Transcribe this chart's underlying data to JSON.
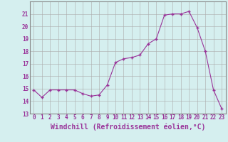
{
  "x": [
    0,
    1,
    2,
    3,
    4,
    5,
    6,
    7,
    8,
    9,
    10,
    11,
    12,
    13,
    14,
    15,
    16,
    17,
    18,
    19,
    20,
    21,
    22,
    23
  ],
  "y": [
    14.9,
    14.3,
    14.9,
    14.9,
    14.9,
    14.9,
    14.6,
    14.4,
    14.5,
    15.3,
    17.1,
    17.4,
    17.5,
    17.7,
    18.6,
    19.0,
    20.9,
    21.0,
    21.0,
    21.2,
    19.9,
    18.0,
    14.9,
    13.4
  ],
  "line_color": "#993399",
  "marker_color": "#993399",
  "bg_color": "#d5efef",
  "grid_color": "#aaaaaa",
  "xlabel": "Windchill (Refroidissement éolien,°C)",
  "ylim": [
    13,
    22
  ],
  "xlim": [
    -0.5,
    23.5
  ],
  "yticks": [
    13,
    14,
    15,
    16,
    17,
    18,
    19,
    20,
    21
  ],
  "xticks": [
    0,
    1,
    2,
    3,
    4,
    5,
    6,
    7,
    8,
    9,
    10,
    11,
    12,
    13,
    14,
    15,
    16,
    17,
    18,
    19,
    20,
    21,
    22,
    23
  ],
  "tick_fontsize": 5.5,
  "xlabel_fontsize": 7.0
}
